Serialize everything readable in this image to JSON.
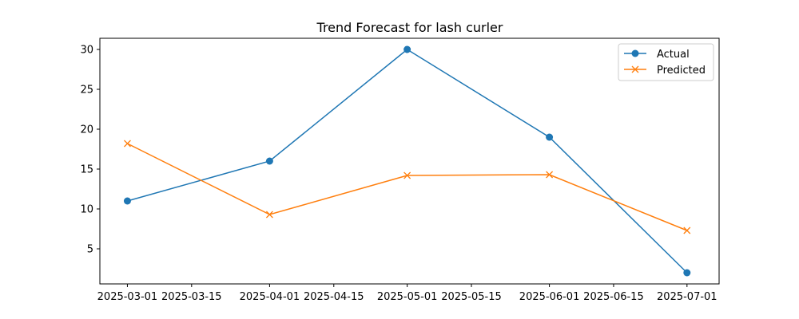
{
  "chart_data": {
    "type": "line",
    "title": "Trend Forecast for lash curler",
    "xlabel": "",
    "ylabel": "",
    "x": [
      "2025-03-01",
      "2025-04-01",
      "2025-05-01",
      "2025-06-01",
      "2025-07-01"
    ],
    "series": [
      {
        "name": "Actual",
        "values": [
          11,
          16,
          30,
          19,
          2
        ],
        "color": "#1f77b4",
        "marker": "circle"
      },
      {
        "name": "Predicted",
        "values": [
          18.2,
          9.3,
          14.2,
          14.3,
          7.3
        ],
        "color": "#ff7f0e",
        "marker": "x"
      }
    ],
    "xticks": [
      "2025-03-01",
      "2025-03-15",
      "2025-04-01",
      "2025-04-15",
      "2025-05-01",
      "2025-05-15",
      "2025-06-01",
      "2025-06-15",
      "2025-07-01"
    ],
    "yticks": [
      5,
      10,
      15,
      20,
      25,
      30
    ],
    "xlim": [
      "2025-02-23",
      "2025-07-08"
    ],
    "ylim": [
      0.6,
      31.4
    ],
    "grid": false,
    "legend": "top-right"
  }
}
